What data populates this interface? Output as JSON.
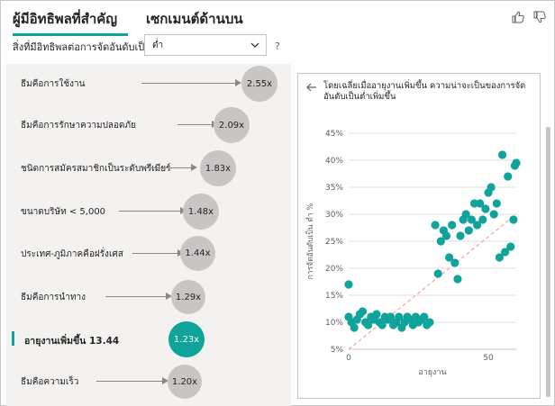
{
  "tabs": [
    {
      "label": "ผู้มีอิทธิพลที่สำคัญ",
      "active": true
    },
    {
      "label": "เซกเมนต์ด้านบน",
      "active": false
    }
  ],
  "icons": {
    "like": "thumbs-up-icon",
    "dislike": "thumbs-down-icon",
    "back": "arrow-left-icon",
    "dropdown": "chevron-down-icon"
  },
  "filter": {
    "label": "สิ่งที่มีอิทธิพลต่อการจัดอันดับเป็น",
    "value": "ต่ำ",
    "help": "?"
  },
  "influencers": [
    {
      "label": "ธีมคือการใช้งาน",
      "value": "2.55x",
      "selected": false
    },
    {
      "label": "ธีมคือการรักษาความปลอดภัย",
      "value": "2.09x",
      "selected": false
    },
    {
      "label": "ชนิดการสมัครสมาชิกเป็นระดับพรีเมียร์",
      "value": "1.83x",
      "selected": false
    },
    {
      "label": "ขนาดบริษัท < 5,000",
      "value": "1.48x",
      "selected": false
    },
    {
      "label": "ประเทศ-ภูมิภาคคือฝรั่งเศส",
      "value": "1.44x",
      "selected": false
    },
    {
      "label": "ธีมคือการนำทาง",
      "value": "1.29x",
      "selected": false
    },
    {
      "label": "อายุงานเพิ่มขึ้น 13.44",
      "value": "1.23x",
      "selected": true
    },
    {
      "label": "ธีมคือความเร็ว",
      "value": "1.20x",
      "selected": false
    }
  ],
  "detail": {
    "description": "โดยเฉลี่ยเมื่ออายุงานเพิ่มขึ้น ความน่าจะเป็นของการจัดอันดับเป็นต่ำเพิ่มขึ้น"
  },
  "colors": {
    "accent": "#0fa39a",
    "bubble": "#c8c6c4",
    "trend": "#f4a0a8"
  },
  "chart_data": {
    "type": "scatter",
    "title": "",
    "xlabel": "อายุงาน",
    "ylabel": "การจัดอันดับเป็น ต่ำ %",
    "xlim": [
      0,
      60
    ],
    "ylim": [
      5,
      45
    ],
    "x_ticks": [
      "0",
      "50"
    ],
    "y_ticks": [
      "5%",
      "10%",
      "15%",
      "20%",
      "25%",
      "30%",
      "35%",
      "40%",
      "45%"
    ],
    "grid": true,
    "trendline": {
      "x": [
        0,
        60
      ],
      "y": [
        5,
        30
      ]
    },
    "series": [
      {
        "points": [
          [
            0,
            17
          ],
          [
            0,
            11
          ],
          [
            1,
            10
          ],
          [
            2,
            9
          ],
          [
            3,
            10.5
          ],
          [
            4,
            11.5
          ],
          [
            5,
            12
          ],
          [
            6,
            10
          ],
          [
            7,
            9.5
          ],
          [
            8,
            11
          ],
          [
            9,
            10.5
          ],
          [
            10,
            11.5
          ],
          [
            11,
            10
          ],
          [
            12,
            9.5
          ],
          [
            13,
            11
          ],
          [
            14,
            10.5
          ],
          [
            15,
            11
          ],
          [
            16,
            9.5
          ],
          [
            17,
            10
          ],
          [
            18,
            11
          ],
          [
            19,
            9
          ],
          [
            20,
            10
          ],
          [
            21,
            11
          ],
          [
            22,
            10.5
          ],
          [
            23,
            9.5
          ],
          [
            24,
            11
          ],
          [
            25,
            10
          ],
          [
            26,
            10.5
          ],
          [
            27,
            11
          ],
          [
            28,
            9.5
          ],
          [
            29,
            10
          ],
          [
            31,
            28
          ],
          [
            32,
            19
          ],
          [
            33,
            25
          ],
          [
            34,
            27
          ],
          [
            35,
            26
          ],
          [
            36,
            22
          ],
          [
            37,
            28
          ],
          [
            38,
            21
          ],
          [
            39,
            18
          ],
          [
            40,
            26
          ],
          [
            41,
            29
          ],
          [
            42,
            30
          ],
          [
            43,
            27
          ],
          [
            44,
            29
          ],
          [
            45,
            32
          ],
          [
            46,
            28
          ],
          [
            47,
            32
          ],
          [
            48,
            29
          ],
          [
            49,
            31
          ],
          [
            50,
            34
          ],
          [
            51,
            35
          ],
          [
            52,
            30
          ],
          [
            53,
            32
          ],
          [
            54,
            22
          ],
          [
            55,
            41
          ],
          [
            56,
            23
          ],
          [
            57,
            37
          ],
          [
            58,
            24
          ],
          [
            59,
            29
          ],
          [
            59.5,
            39
          ],
          [
            60,
            39.5
          ]
        ]
      }
    ]
  }
}
